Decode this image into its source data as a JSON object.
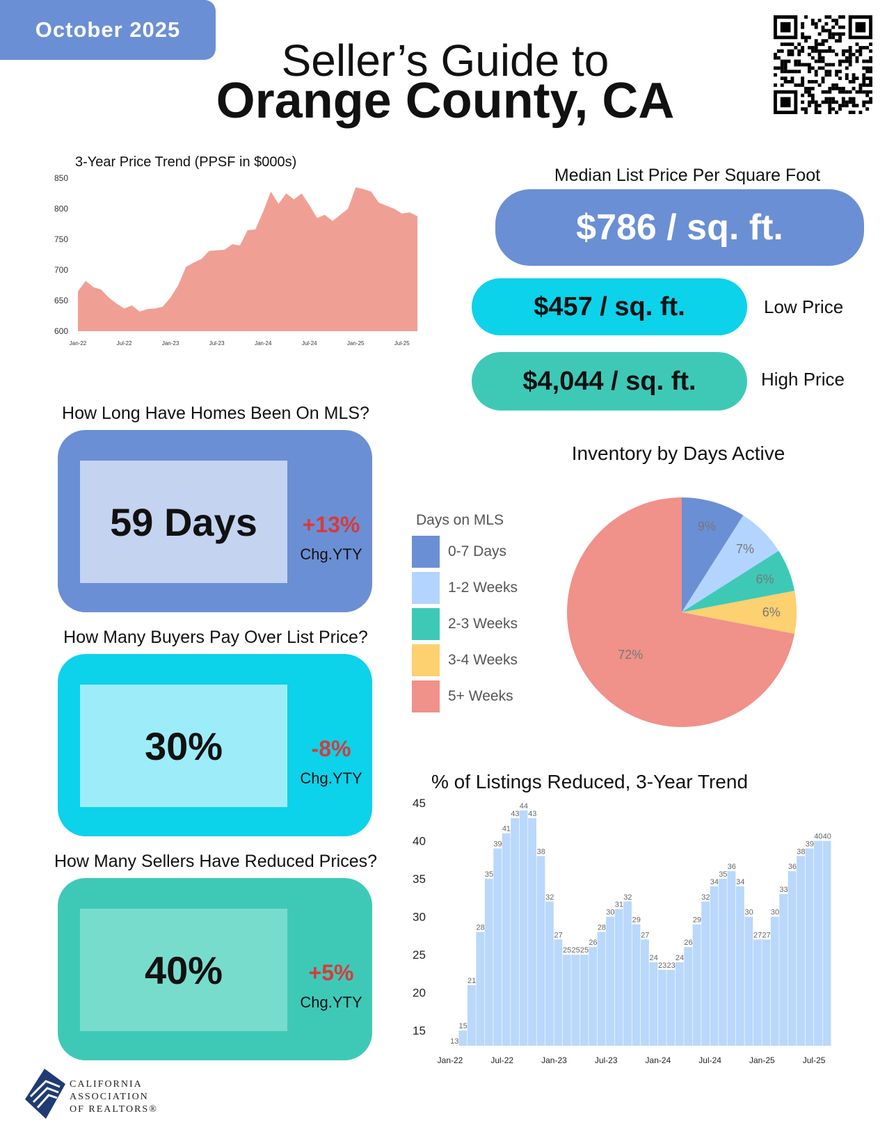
{
  "header": {
    "date": "October 2025",
    "title_line1": "Seller’s Guide to",
    "title_line2": "Orange County, CA"
  },
  "colors": {
    "blue": "#6b8fd4",
    "light_blue": "#b3d4ff",
    "cyan": "#0cd2ea",
    "teal": "#3ec9b7",
    "yellow": "#fdd070",
    "salmon": "#f0918a",
    "red_text": "#d63b3b"
  },
  "list_price": {
    "median_title": "Median List Price Per Square Foot",
    "median": "$786 / sq. ft.",
    "low": "$457 / sq. ft.",
    "low_label": "Low Price",
    "high": "$4,044 / sq. ft.",
    "high_label": "High Price"
  },
  "cards": [
    {
      "title": "How Long Have Homes Been On MLS?",
      "value": "59 Days",
      "change": "+13%",
      "change_label": "Chg.YTY"
    },
    {
      "title": "How Many Buyers Pay Over List Price?",
      "value": "30%",
      "change": "-8%",
      "change_label": "Chg.YTY"
    },
    {
      "title": "How Many Sellers Have Reduced Prices?",
      "value": "40%",
      "change": "+5%",
      "change_label": "Chg.YTY"
    }
  ],
  "logo": {
    "line1": "CALIFORNIA",
    "line2": "ASSOCIATION",
    "line3": "OF REALTORS®"
  },
  "chart_data": [
    {
      "type": "area",
      "title": "3-Year Price Trend (PPSF in $000s)",
      "ylim": [
        600,
        850
      ],
      "yticks": [
        600,
        650,
        700,
        750,
        800,
        850
      ],
      "xtick_labels": [
        "Jan-22",
        "Jul-22",
        "Jan-23",
        "Jul-23",
        "Jan-24",
        "Jul-24",
        "Jan-25",
        "Jul-25"
      ],
      "x": [
        "2022-01",
        "2022-02",
        "2022-03",
        "2022-04",
        "2022-05",
        "2022-06",
        "2022-07",
        "2022-08",
        "2022-09",
        "2022-10",
        "2022-11",
        "2022-12",
        "2023-01",
        "2023-02",
        "2023-03",
        "2023-04",
        "2023-05",
        "2023-06",
        "2023-07",
        "2023-08",
        "2023-09",
        "2023-10",
        "2023-11",
        "2023-12",
        "2024-01",
        "2024-02",
        "2024-03",
        "2024-04",
        "2024-05",
        "2024-06",
        "2024-07",
        "2024-08",
        "2024-09",
        "2024-10",
        "2024-11",
        "2024-12",
        "2025-01",
        "2025-02",
        "2025-03",
        "2025-04",
        "2025-05",
        "2025-06",
        "2025-07",
        "2025-08",
        "2025-09"
      ],
      "values": [
        665,
        682,
        672,
        668,
        655,
        645,
        637,
        642,
        632,
        636,
        637,
        640,
        655,
        675,
        705,
        712,
        718,
        731,
        732,
        733,
        742,
        740,
        765,
        766,
        795,
        828,
        808,
        825,
        815,
        825,
        806,
        785,
        790,
        780,
        790,
        800,
        835,
        832,
        828,
        810,
        805,
        800,
        792,
        794,
        788
      ],
      "color": "#f09f94",
      "grid": false
    },
    {
      "type": "pie",
      "title": "Inventory by Days Active",
      "legend_title": "Days on MLS",
      "legend_position": "left",
      "categories": [
        "0-7 Days",
        "1-2 Weeks",
        "2-3 Weeks",
        "3-4 Weeks",
        "5+ Weeks"
      ],
      "values": [
        9,
        7,
        6,
        6,
        72
      ],
      "labels": [
        "9%",
        "7%",
        "6%",
        "6%",
        "72%"
      ],
      "colors": [
        "#6b8fd4",
        "#b3d4ff",
        "#3ec9b7",
        "#fdd070",
        "#f0918a"
      ]
    },
    {
      "type": "bar",
      "title": "% of Listings Reduced, 3-Year Trend",
      "ylim": [
        13,
        45
      ],
      "yticks": [
        15,
        20,
        25,
        30,
        35,
        40,
        45
      ],
      "xtick_labels": [
        "Jan-22",
        "Jul-22",
        "Jan-23",
        "Jul-23",
        "Jan-24",
        "Jul-24",
        "Jan-25",
        "Jul-25"
      ],
      "values": [
        13,
        15,
        21,
        28,
        35,
        39,
        41,
        43,
        44,
        43,
        38,
        32,
        27,
        25,
        25,
        25,
        26,
        28,
        30,
        31,
        32,
        29,
        27,
        24,
        23,
        23,
        24,
        26,
        29,
        32,
        34,
        35,
        36,
        34,
        30,
        27,
        27,
        30,
        33,
        36,
        38,
        39,
        40,
        40
      ],
      "color": "#b9d8fb",
      "grid": false
    }
  ]
}
